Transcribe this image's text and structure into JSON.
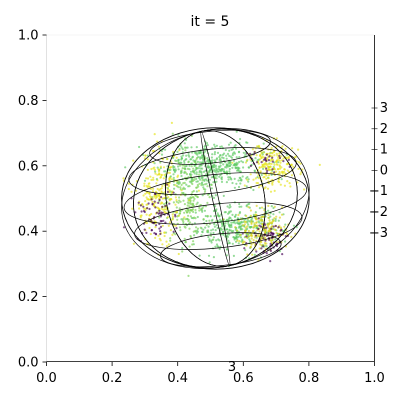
{
  "chart_data": {
    "type": "scatter",
    "title": "it = 5",
    "xlabel": "",
    "ylabel": "",
    "xlim": [
      0.0,
      1.0
    ],
    "ylim": [
      0.0,
      1.0
    ],
    "x_ticks": [
      0.0,
      0.2,
      0.4,
      0.6,
      0.8,
      1.0
    ],
    "x_tick_labels": [
      "0.0",
      "0.2",
      "0.4",
      "0.6",
      "0.8",
      "1.0"
    ],
    "y_ticks": [
      0.0,
      0.2,
      0.4,
      0.6,
      0.8,
      1.0
    ],
    "y_tick_labels": [
      "0.0",
      "0.2",
      "0.4",
      "0.6",
      "0.8",
      "1.0"
    ],
    "right_axis_tick_labels": [
      "3",
      "2",
      "1",
      "0",
      "−1",
      "−2",
      "−3"
    ],
    "bottom_stray_label": "3",
    "grid": false,
    "colormap": "viridis",
    "colors": {
      "mesh": "#000000",
      "purple": "#440154",
      "green": "#5ec962",
      "lightgreen": "#7ad151",
      "yellow": "#e5e419",
      "gold": "#d8d219"
    },
    "sphere_wireframe": {
      "center": [
        0.515,
        0.5
      ],
      "radius": [
        0.28,
        0.21
      ]
    },
    "point_clusters": [
      {
        "center": [
          0.5,
          0.6
        ],
        "spread": [
          0.08,
          0.035
        ],
        "color": "green",
        "count": 480
      },
      {
        "center": [
          0.58,
          0.41
        ],
        "spread": [
          0.07,
          0.035
        ],
        "color": "green",
        "count": 380
      },
      {
        "center": [
          0.43,
          0.5
        ],
        "spread": [
          0.04,
          0.07
        ],
        "color": "lightgreen",
        "count": 240
      },
      {
        "center": [
          0.34,
          0.5
        ],
        "spread": [
          0.035,
          0.07
        ],
        "color": "yellow",
        "count": 260
      },
      {
        "center": [
          0.69,
          0.6
        ],
        "spread": [
          0.04,
          0.035
        ],
        "color": "yellow",
        "count": 220
      },
      {
        "center": [
          0.66,
          0.4
        ],
        "spread": [
          0.04,
          0.03
        ],
        "color": "gold",
        "count": 200
      },
      {
        "center": [
          0.33,
          0.45
        ],
        "spread": [
          0.03,
          0.04
        ],
        "color": "purple",
        "count": 70
      },
      {
        "center": [
          0.68,
          0.38
        ],
        "spread": [
          0.03,
          0.025
        ],
        "color": "purple",
        "count": 70
      },
      {
        "center": [
          0.66,
          0.62
        ],
        "spread": [
          0.03,
          0.02
        ],
        "color": "purple",
        "count": 30
      }
    ]
  }
}
